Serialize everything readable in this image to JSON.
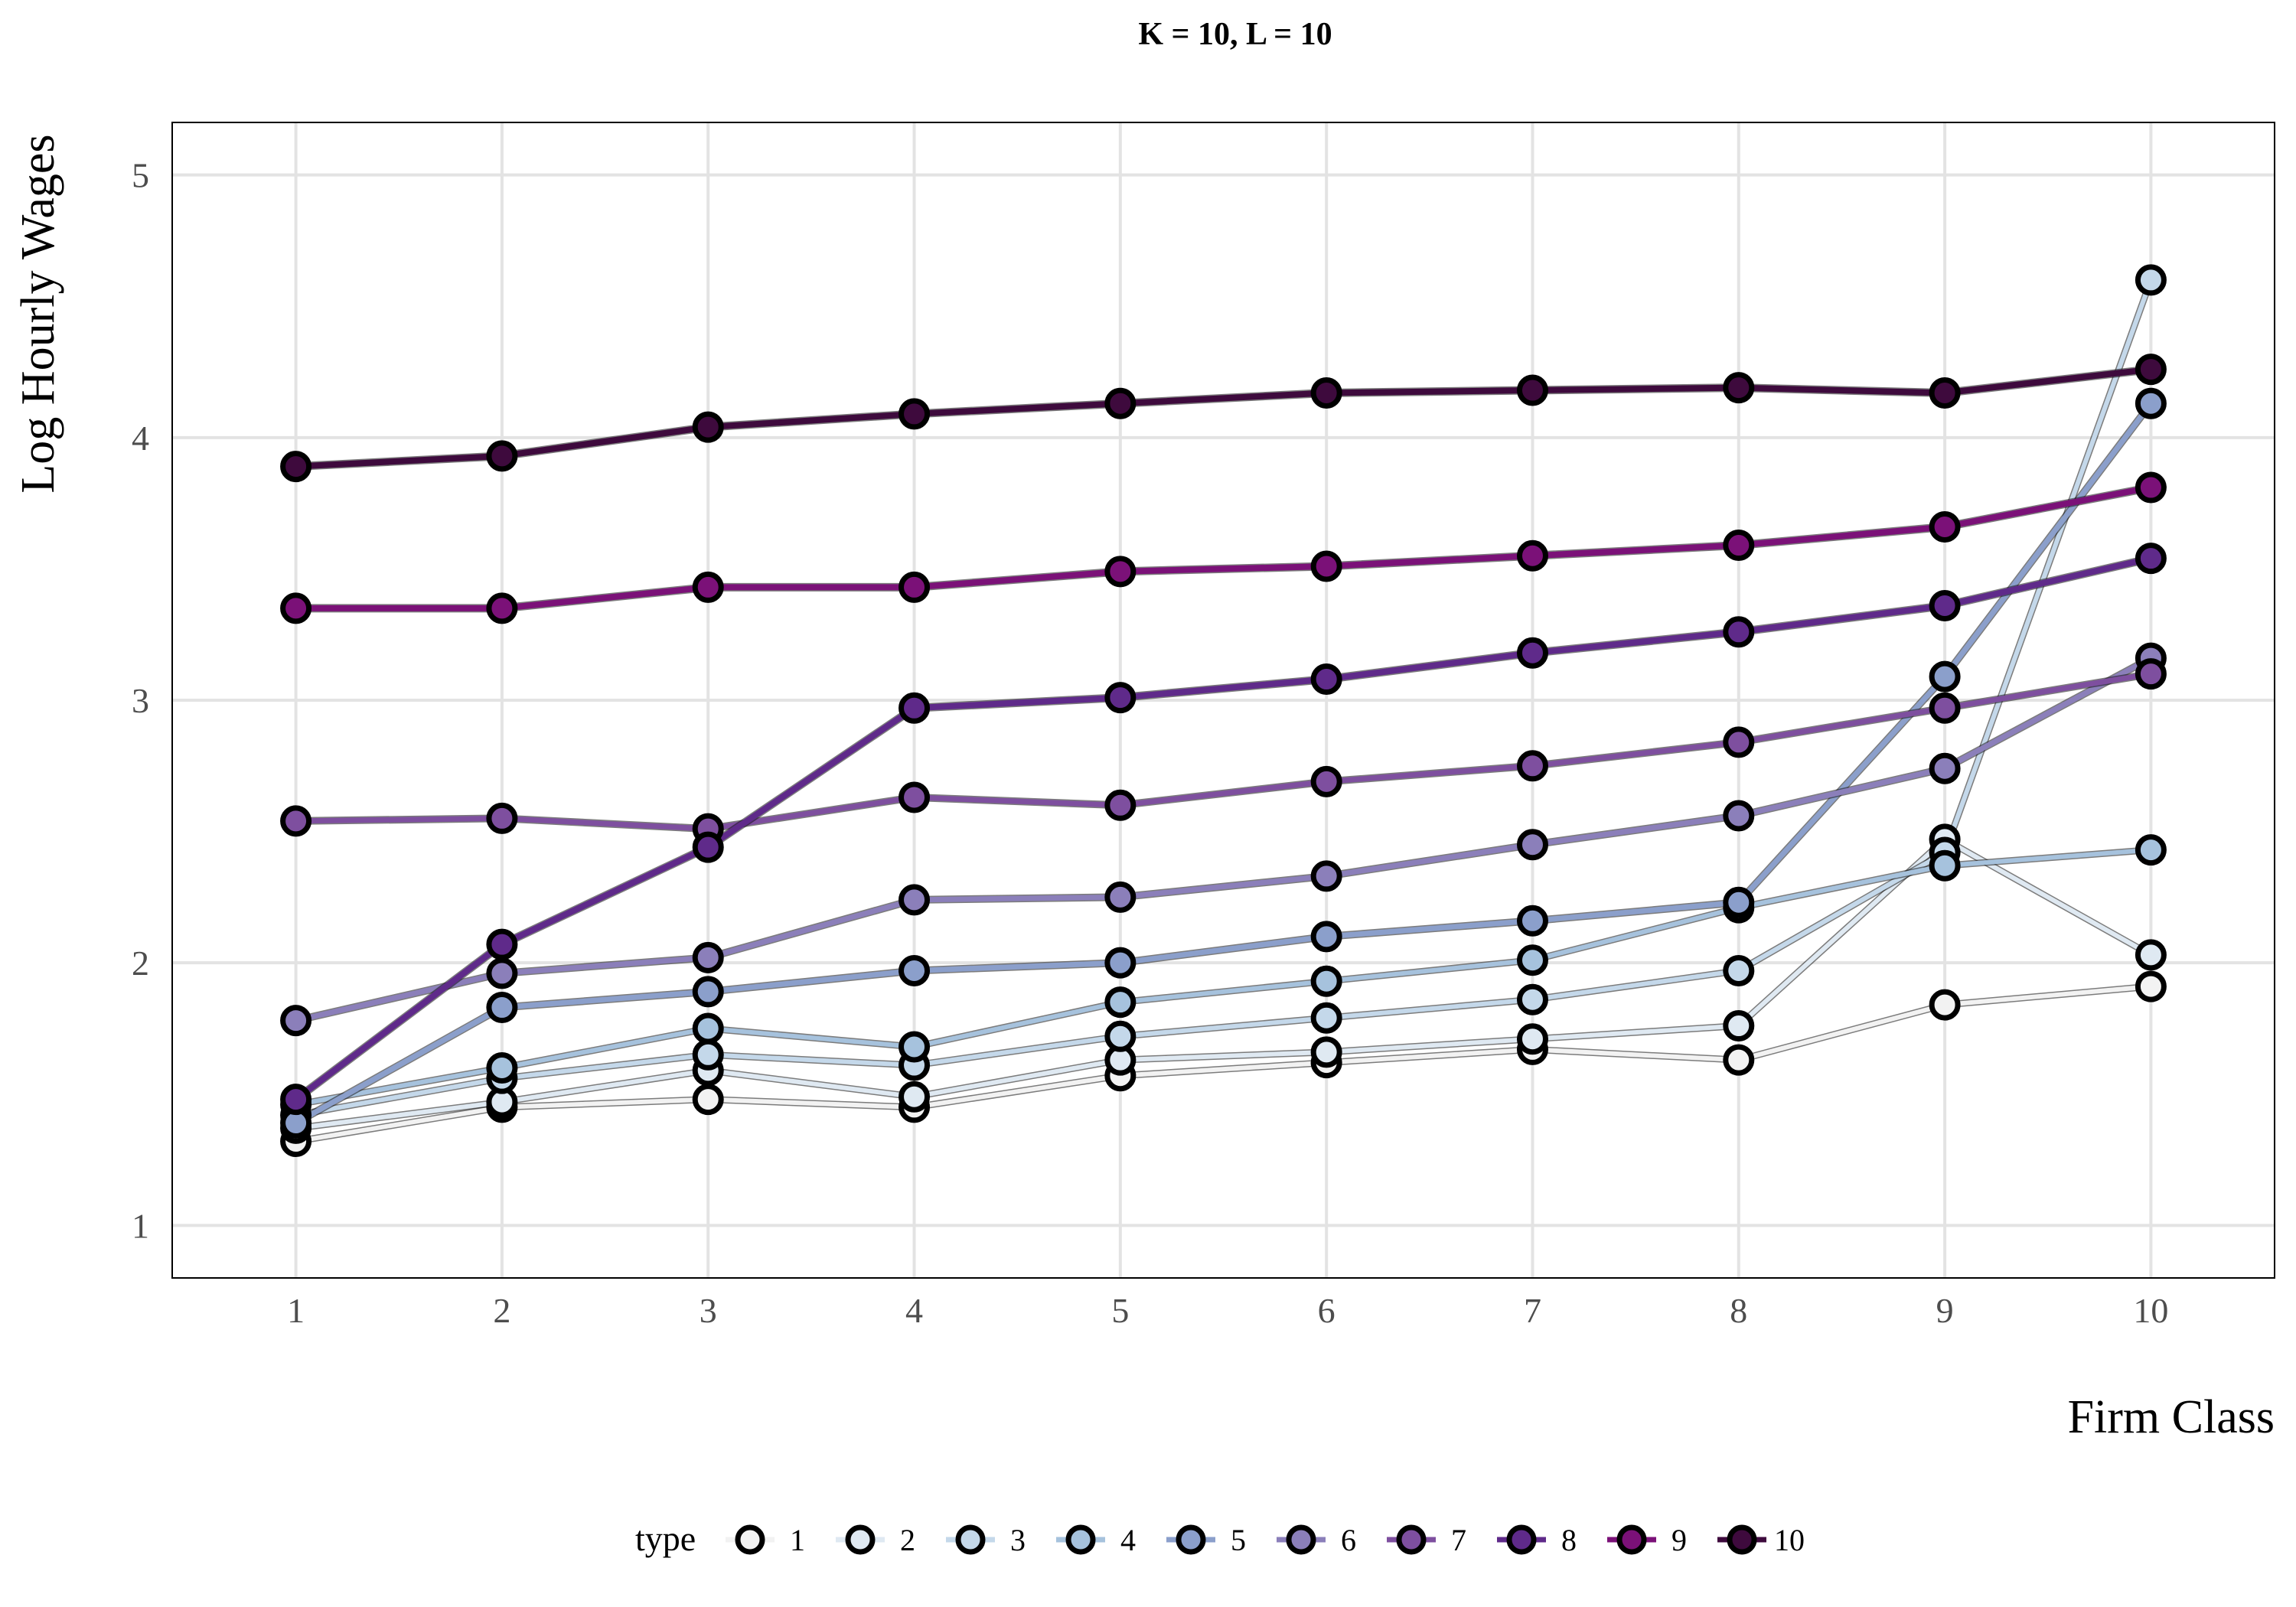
{
  "chart_data": {
    "type": "line",
    "title": "K = 10, L = 10",
    "xlabel": "Firm Class",
    "ylabel": "Log Hourly Wages",
    "x": [
      1,
      2,
      3,
      4,
      5,
      6,
      7,
      8,
      9,
      10
    ],
    "x_ticks": [
      "1",
      "2",
      "3",
      "4",
      "5",
      "6",
      "7",
      "8",
      "9",
      "10"
    ],
    "xlim": [
      0.4,
      10.6
    ],
    "ylim": [
      0.8,
      5.2
    ],
    "y_ticks": [
      "1",
      "2",
      "3",
      "4",
      "5"
    ],
    "grid": true,
    "legend_title": "type",
    "legend_position": "bottom",
    "series": [
      {
        "name": "1",
        "color": "#f2f2f2",
        "values": [
          1.32,
          1.45,
          1.48,
          1.45,
          1.57,
          1.62,
          1.67,
          1.63,
          1.84,
          1.91
        ]
      },
      {
        "name": "2",
        "color": "#dfe9f2",
        "values": [
          1.37,
          1.47,
          1.59,
          1.49,
          1.63,
          1.66,
          1.71,
          1.76,
          2.47,
          2.03
        ]
      },
      {
        "name": "3",
        "color": "#c4d8ea",
        "values": [
          1.42,
          1.56,
          1.65,
          1.61,
          1.72,
          1.79,
          1.86,
          1.97,
          2.42,
          4.6
        ]
      },
      {
        "name": "4",
        "color": "#a6c2dd",
        "values": [
          1.46,
          1.6,
          1.75,
          1.68,
          1.85,
          1.93,
          2.01,
          2.21,
          2.37,
          2.43
        ]
      },
      {
        "name": "5",
        "color": "#8b9fcb",
        "values": [
          1.39,
          1.83,
          1.89,
          1.97,
          2.0,
          2.1,
          2.16,
          2.23,
          3.09,
          4.13
        ]
      },
      {
        "name": "6",
        "color": "#8b7fba",
        "values": [
          1.78,
          1.96,
          2.02,
          2.24,
          2.25,
          2.33,
          2.45,
          2.56,
          2.74,
          3.16
        ]
      },
      {
        "name": "7",
        "color": "#7e4f9f",
        "values": [
          2.54,
          2.55,
          2.51,
          2.63,
          2.6,
          2.69,
          2.75,
          2.84,
          2.97,
          3.1
        ]
      },
      {
        "name": "8",
        "color": "#5f2a8a",
        "values": [
          1.48,
          2.07,
          2.44,
          2.97,
          3.01,
          3.08,
          3.18,
          3.26,
          3.36,
          3.54
        ]
      },
      {
        "name": "9",
        "color": "#7b1178",
        "values": [
          3.35,
          3.35,
          3.43,
          3.43,
          3.49,
          3.51,
          3.55,
          3.59,
          3.66,
          3.81
        ]
      },
      {
        "name": "10",
        "color": "#3e0a3d",
        "values": [
          3.89,
          3.93,
          4.04,
          4.09,
          4.13,
          4.17,
          4.18,
          4.19,
          4.17,
          4.26
        ]
      }
    ]
  }
}
